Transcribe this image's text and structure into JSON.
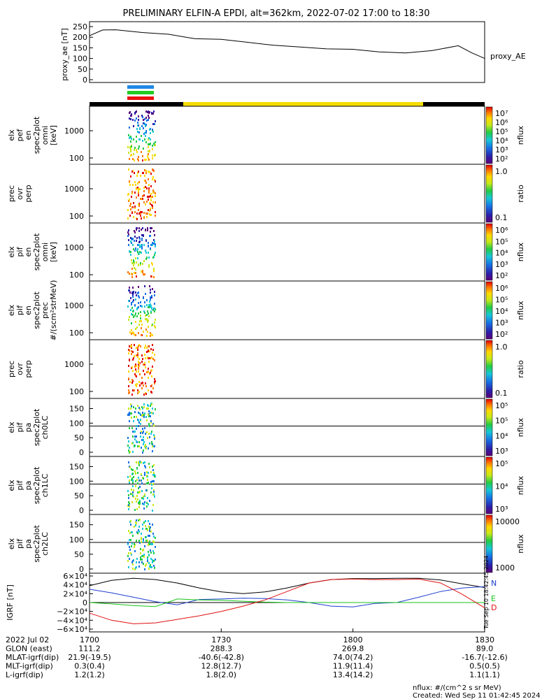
{
  "title": "PRELIMINARY ELFIN-A EPDI, alt=362km, 2022-07-02 17:00 to 18:30",
  "side_stamp": "Tue Sep 10 18:42:45 2024",
  "footer": {
    "units": "nflux: #/(cm^2 s sr MeV)",
    "created": "Created: Wed Sep 11 01:42:45 2024"
  },
  "ephemeris": {
    "row_labels": [
      "2022 Jul 02",
      "GLON (east)",
      "MLAT-igrf(dip)",
      "MLT-igrf(dip)",
      "L-igrf(dip)"
    ],
    "columns": [
      {
        "time": "1700",
        "glon": "111.2",
        "mlat": "21.9(-19.5)",
        "mlt": "0.3(0.4)",
        "l": "1.2(1.2)"
      },
      {
        "time": "1730",
        "glon": "288.3",
        "mlat": "-40.6(-42.8)",
        "mlt": "12.8(12.7)",
        "l": "1.8(2.0)"
      },
      {
        "time": "1800",
        "glon": "269.8",
        "mlat": "74.0(74.2)",
        "mlt": "11.9(11.4)",
        "l": "13.4(14.2)"
      },
      {
        "time": "1830",
        "glon": "89.0",
        "mlat": "-16.7(-12.6)",
        "mlt": "0.5(0.5)",
        "l": "1.1(1.1)"
      }
    ]
  },
  "colors": {
    "igrf_n": "#000000",
    "igrf_e": "#1f3fd0",
    "igrf_d": "#19c619",
    "igrf_r": "#e01010",
    "ae_line": "#000000",
    "bar_blue": "#1e88e5",
    "bar_green": "#22cc22",
    "bar_red": "#ee1111",
    "orbit_yellow": "#f5dc00"
  },
  "chart_data": [
    {
      "type": "line",
      "panel": "proxy_ae",
      "ylabel": "proxy_ae [nT]",
      "legend": "proxy_AE",
      "ylim": [
        0,
        260
      ],
      "yticks": [
        "250",
        "200",
        "150",
        "100",
        "50",
        "0"
      ],
      "ytick_values": [
        250,
        200,
        150,
        100,
        50,
        0
      ],
      "x_minutes": [
        0,
        3,
        6,
        12,
        18,
        24,
        30,
        36,
        42,
        48,
        54,
        60,
        66,
        72,
        78,
        84,
        87,
        90
      ],
      "values": [
        207,
        234,
        235,
        222,
        214,
        193,
        190,
        176,
        162,
        154,
        145,
        143,
        131,
        126,
        137,
        160,
        127,
        100
      ]
    },
    {
      "type": "heatmap",
      "panel": "elx_pef_en_spec2plot_omni",
      "ylabel": "elx pef en spec2plot omni [keV]",
      "yscale": "log",
      "yticks": [
        "1000",
        "100"
      ],
      "colorbar": {
        "label": "nflux",
        "ticks": [
          "10⁷",
          "10⁶",
          "10⁵",
          "10⁴",
          "10³",
          "10²"
        ]
      }
    },
    {
      "type": "heatmap",
      "panel": "elx_pef_en_spec2plot_prec_over_perp",
      "ylabel": "prec ovr perp",
      "yscale": "log",
      "yticks": [
        "1000",
        "100"
      ],
      "colorbar": {
        "label": "ratio",
        "ticks": [
          "1.0",
          "0.1"
        ]
      }
    },
    {
      "type": "heatmap",
      "panel": "elx_pif_en_spec2plot_omni",
      "ylabel": "elx pif en spec2plot omni [keV]",
      "yscale": "log",
      "yticks": [
        "1000",
        "100"
      ],
      "colorbar": {
        "label": "nflux",
        "ticks": [
          "10⁶",
          "10⁵",
          "10⁴",
          "10³",
          "10²"
        ]
      }
    },
    {
      "type": "heatmap",
      "panel": "elx_pif_en_spec2plot_prec",
      "ylabel": "elx pif en spec2plot prec #/(scm²strMeV)",
      "yscale": "log",
      "yticks": [
        "1000",
        "100"
      ],
      "colorbar": {
        "label": "nflux",
        "ticks": [
          "10⁶",
          "10⁵",
          "10⁴",
          "10³",
          "10²"
        ]
      }
    },
    {
      "type": "heatmap",
      "panel": "elx_pif_en_spec2plot_prec_over_perp",
      "ylabel": "prec ovr perp",
      "yscale": "log",
      "yticks": [
        "1000",
        "100"
      ],
      "colorbar": {
        "label": "ratio",
        "ticks": [
          "1.0",
          "0.1"
        ]
      }
    },
    {
      "type": "heatmap",
      "panel": "elx_pif_pa_spec2plot_ch0LC",
      "ylabel": "elx pif pa spec2plot ch0LC",
      "ylim": [
        0,
        180
      ],
      "yticks": [
        "150",
        "100",
        "50",
        "0"
      ],
      "colorbar": {
        "label": "nflux",
        "ticks": [
          "10⁵",
          "10⁵",
          "10⁴",
          "10³"
        ]
      }
    },
    {
      "type": "heatmap",
      "panel": "elx_pif_pa_spec2plot_ch1LC",
      "ylabel": "elx pif pa spec2plot ch1LC",
      "ylim": [
        0,
        180
      ],
      "yticks": [
        "150",
        "100",
        "50",
        "0"
      ],
      "colorbar": {
        "label": "nflux",
        "ticks": [
          "10⁵",
          "10⁴",
          "10³"
        ]
      }
    },
    {
      "type": "heatmap",
      "panel": "elx_pif_pa_spec2plot_ch2LC",
      "ylabel": "elx pif pa spec2plot ch2LC",
      "ylim": [
        0,
        180
      ],
      "yticks": [
        "150",
        "100",
        "50",
        "0"
      ],
      "colorbar": {
        "label": "nflux",
        "ticks": [
          "10000",
          "1000"
        ]
      }
    },
    {
      "type": "line",
      "panel": "IGRF",
      "ylabel": "IGRF [nT]",
      "ylim": [
        -60000,
        60000
      ],
      "yticks": [
        "6×10⁴",
        "4×10⁴",
        "2×10⁴",
        "0",
        "−2×10⁴",
        "−4×10⁴",
        "−6×10⁴"
      ],
      "ytick_values": [
        60000,
        40000,
        20000,
        0,
        -20000,
        -40000,
        -60000
      ],
      "x_minutes": [
        0,
        5,
        10,
        15,
        20,
        25,
        30,
        35,
        40,
        45,
        50,
        55,
        60,
        65,
        70,
        75,
        80,
        85,
        90
      ],
      "series": [
        {
          "name": "N",
          "values": [
            38000,
            50000,
            55000,
            52000,
            44000,
            33000,
            24000,
            20000,
            24000,
            33000,
            44000,
            52000,
            54000,
            54000,
            55000,
            55000,
            51000,
            42000,
            34000
          ]
        },
        {
          "name": "E",
          "values": [
            30000,
            22000,
            12000,
            2000,
            -5000,
            7000,
            8000,
            10000,
            9000,
            6000,
            0,
            -8000,
            -10000,
            -2000,
            0,
            12000,
            25000,
            33000,
            36000
          ]
        },
        {
          "name": "D",
          "values": [
            0,
            -3000,
            -7000,
            -9000,
            8000,
            6000,
            5000,
            3000,
            1000,
            0,
            0,
            0,
            0,
            0,
            0,
            0,
            0,
            0,
            0
          ]
        },
        {
          "name": "",
          "values": [
            -24000,
            -40000,
            -48000,
            -46000,
            -38000,
            -30000,
            -20000,
            -8000,
            6000,
            25000,
            44000,
            52000,
            53000,
            52000,
            52000,
            53000,
            44000,
            18000,
            -12000
          ]
        }
      ]
    }
  ],
  "x_axis": {
    "range_minutes": [
      0,
      90
    ]
  }
}
